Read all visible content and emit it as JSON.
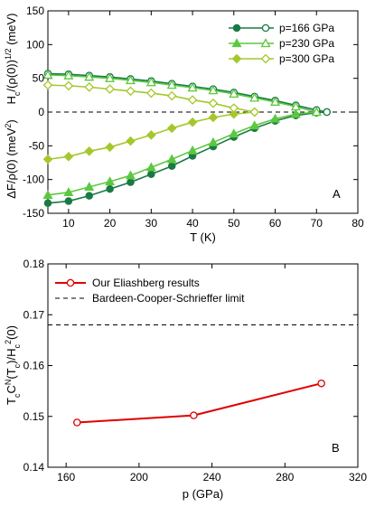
{
  "colors": {
    "p166": "#1a7a45",
    "p230": "#5cc840",
    "p300": "#a4c82c",
    "eliashberg": "#e00000",
    "bcs": "#000000"
  },
  "chart_data": [
    {
      "type": "line",
      "panel_label": "A",
      "xlabel": "T (K)",
      "ylabel_left": "ΔF/ρ(0) (meV²)",
      "ylabel_right": "Hₙ/(ρ(0))¹ᐟ² (meV)",
      "ylabel_parts": {
        "left": [
          "ΔF/ρ(0) (meV",
          "2",
          ")"
        ],
        "right": [
          "H",
          "c",
          "/(ρ(0))",
          "1/2",
          " (meV)"
        ]
      },
      "xlim": [
        5,
        80
      ],
      "ylim": [
        -150,
        150
      ],
      "xticks": [
        10,
        20,
        30,
        40,
        50,
        60,
        70,
        80
      ],
      "yticks": [
        -150,
        -100,
        -50,
        0,
        50,
        100,
        150
      ],
      "legend_position": "top-right",
      "series": [
        {
          "name": "p=166 GPa",
          "color_key": "p166",
          "marker": "circle",
          "dF": {
            "x": [
              5,
              10,
              15,
              20,
              25,
              30,
              35,
              40,
              45,
              50,
              55,
              60,
              65,
              70,
              72.5
            ],
            "y": [
              -135,
              -132,
              -124,
              -114,
              -104,
              -92,
              -80,
              -65,
              -51,
              -37,
              -24,
              -13,
              -5,
              -1,
              0
            ]
          },
          "Hc": {
            "x": [
              5,
              10,
              15,
              20,
              25,
              30,
              35,
              40,
              45,
              50,
              55,
              60,
              65,
              70,
              72.5
            ],
            "y": [
              57,
              56,
              54,
              52,
              49,
              46,
              42,
              38,
              34,
              29,
              23,
              17,
              10,
              3,
              0
            ]
          }
        },
        {
          "name": "p=230 GPa",
          "color_key": "p230",
          "marker": "triangle",
          "dF": {
            "x": [
              5,
              10,
              15,
              20,
              25,
              30,
              35,
              40,
              45,
              50,
              55,
              60,
              65,
              70
            ],
            "y": [
              -123,
              -119,
              -111,
              -103,
              -94,
              -82,
              -70,
              -57,
              -45,
              -32,
              -20,
              -10,
              -3,
              0
            ]
          },
          "Hc": {
            "x": [
              5,
              10,
              15,
              20,
              25,
              30,
              35,
              40,
              45,
              50,
              55,
              60,
              65,
              70
            ],
            "y": [
              55,
              54,
              52,
              50,
              47,
              44,
              40,
              36,
              32,
              27,
              21,
              15,
              8,
              0
            ]
          }
        },
        {
          "name": "p=300 GPa",
          "color_key": "p300",
          "marker": "diamond",
          "dF": {
            "x": [
              5,
              10,
              15,
              20,
              25,
              30,
              35,
              40,
              45,
              50,
              55
            ],
            "y": [
              -70,
              -66,
              -58,
              -52,
              -43,
              -34,
              -24,
              -15,
              -8,
              -3,
              0
            ]
          },
          "Hc": {
            "x": [
              5,
              10,
              15,
              20,
              25,
              30,
              35,
              40,
              45,
              50,
              55
            ],
            "y": [
              40,
              39,
              37,
              34,
              31,
              28,
              24,
              18,
              13,
              6,
              0
            ]
          }
        }
      ],
      "reference_line": {
        "y": 0,
        "style": "dashed"
      }
    },
    {
      "type": "line",
      "panel_label": "B",
      "xlabel": "p (GPa)",
      "ylabel_parts": [
        "T",
        "c",
        "C",
        "N",
        "(T",
        "c",
        ")/H",
        "c",
        "2",
        "(0)"
      ],
      "xlim": [
        150,
        320
      ],
      "ylim": [
        0.14,
        0.18
      ],
      "xticks": [
        160,
        200,
        240,
        280,
        320
      ],
      "yticks": [
        0.14,
        0.15,
        0.16,
        0.17,
        0.18
      ],
      "yticklabels": [
        "0.14",
        "0.15",
        "0.16",
        "0.17",
        "0.18"
      ],
      "legend_position": "top-left",
      "series": [
        {
          "name": "Our Eliashberg results",
          "color_key": "eliashberg",
          "marker": "open-circle",
          "x": [
            166,
            230,
            300
          ],
          "y": [
            0.1488,
            0.1502,
            0.1565
          ]
        }
      ],
      "reference_line": {
        "name": "Bardeen-Cooper-Schrieffer limit",
        "y": 0.168,
        "style": "dashed"
      }
    }
  ]
}
